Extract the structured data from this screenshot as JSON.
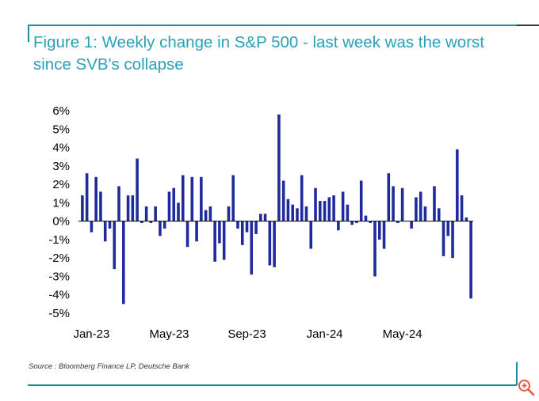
{
  "title": "Figure 1: Weekly change in S&P 500 - last week was the worst since SVB's collapse",
  "source": "Source : Bloomberg Finance LP, Deutsche Bank",
  "colors": {
    "accent": "#1e8ba4",
    "title": "#2aa0b8",
    "bar": "#1f2a9c",
    "zoom": "#e8553f"
  },
  "zoom_icon": "zoom-in-icon",
  "chart_data": {
    "type": "bar",
    "title": "Weekly change in S&P 500",
    "xlabel": "",
    "ylabel": "",
    "ylim": [
      -5,
      6
    ],
    "yticks": [
      6,
      5,
      4,
      3,
      2,
      1,
      0,
      -1,
      -2,
      -3,
      -4,
      -5
    ],
    "ytick_labels": [
      "6%",
      "5%",
      "4%",
      "3%",
      "2%",
      "1%",
      "0%",
      "-1%",
      "-2%",
      "-3%",
      "-4%",
      "-5%"
    ],
    "xtick_labels": [
      {
        "label": "Jan-23",
        "index": 2
      },
      {
        "label": "May-23",
        "index": 19
      },
      {
        "label": "Sep-23",
        "index": 36
      },
      {
        "label": "Jan-24",
        "index": 53
      },
      {
        "label": "May-24",
        "index": 70
      }
    ],
    "grid": false,
    "legend": "none",
    "values": [
      1.4,
      2.6,
      -0.6,
      2.4,
      1.6,
      -1.1,
      -0.4,
      -2.6,
      1.9,
      -4.5,
      1.4,
      1.4,
      3.4,
      -0.1,
      0.8,
      -0.1,
      0.8,
      -0.8,
      -0.4,
      1.6,
      1.8,
      1.0,
      2.5,
      -1.4,
      2.4,
      -1.1,
      2.4,
      0.6,
      0.8,
      -2.2,
      -1.2,
      -2.1,
      0.8,
      2.5,
      -0.4,
      -1.3,
      -0.6,
      -2.9,
      -0.7,
      0.4,
      0.4,
      -2.4,
      -2.5,
      5.8,
      2.2,
      1.2,
      0.9,
      0.7,
      2.5,
      0.8,
      -1.5,
      1.8,
      1.1,
      1.1,
      1.3,
      1.4,
      -0.5,
      1.6,
      0.9,
      -0.2,
      -0.1,
      2.2,
      0.3,
      -0.1,
      -3.0,
      -1.0,
      -1.5,
      2.6,
      1.9,
      -0.1,
      1.8,
      0.0,
      -0.4,
      1.3,
      1.6,
      0.8,
      0.0,
      1.9,
      0.7,
      -1.9,
      -0.8,
      -2.0,
      3.9,
      1.4,
      0.2,
      -4.2
    ]
  }
}
